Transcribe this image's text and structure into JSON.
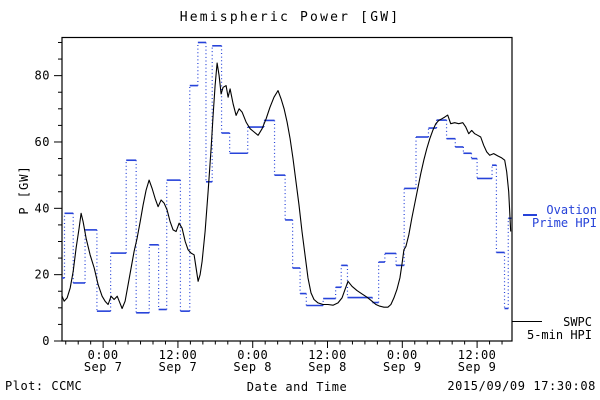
{
  "title": "Hemispheric Power [GW]",
  "footer": {
    "plot_credit": "Plot: CCMC",
    "timestamp": "2015/09/09 17:30:08"
  },
  "legend": {
    "ovation": {
      "line1": "Ovation",
      "line2": "Prime HPI",
      "color": "#2743d9"
    },
    "swpc": {
      "line1": "SWPC",
      "line2": "5-min HPI",
      "color": "#000000"
    }
  },
  "chart_data": {
    "type": "line",
    "title": "Hemispheric Power [GW]",
    "xlabel": "Date and Time",
    "ylabel": "P [GW]",
    "ylim": [
      0,
      91.5
    ],
    "xlim_hours_from_sep7_0000": [
      -6.6,
      65.6
    ],
    "grid": false,
    "legend_position": "right-outside",
    "y_ticks": [
      {
        "v": 0,
        "label": "0"
      },
      {
        "v": 20,
        "label": "20"
      },
      {
        "v": 40,
        "label": "40"
      },
      {
        "v": 60,
        "label": "60"
      },
      {
        "v": 80,
        "label": "80"
      }
    ],
    "y_minor_step": 5,
    "x_ticks": [
      {
        "t": 0,
        "line1": "0:00",
        "line2": "Sep 7"
      },
      {
        "t": 12,
        "line1": "12:00",
        "line2": "Sep 7"
      },
      {
        "t": 24,
        "line1": "0:00",
        "line2": "Sep 8"
      },
      {
        "t": 36,
        "line1": "12:00",
        "line2": "Sep 8"
      },
      {
        "t": 48,
        "line1": "0:00",
        "line2": "Sep 9"
      },
      {
        "t": 60,
        "line1": "12:00",
        "line2": "Sep 9"
      }
    ],
    "x_minor_step_hours": 2,
    "series": [
      {
        "name": "SWPC 5-min HPI",
        "color": "#000000",
        "style": "solid-line",
        "points_t_gw": [
          [
            -6.58,
            13.5
          ],
          [
            -6.26,
            12
          ],
          [
            -5.78,
            13
          ],
          [
            -5.29,
            16
          ],
          [
            -4.81,
            21
          ],
          [
            -4.33,
            28
          ],
          [
            -3.85,
            34
          ],
          [
            -3.53,
            38.5
          ],
          [
            -3.21,
            36
          ],
          [
            -2.73,
            31
          ],
          [
            -2.09,
            26
          ],
          [
            -1.44,
            22
          ],
          [
            -0.8,
            17
          ],
          [
            -0.16,
            13.5
          ],
          [
            0.32,
            12
          ],
          [
            0.8,
            11
          ],
          [
            1.28,
            13.5
          ],
          [
            1.76,
            12.5
          ],
          [
            2.25,
            13.5
          ],
          [
            2.57,
            12
          ],
          [
            3.05,
            9.8
          ],
          [
            3.53,
            12
          ],
          [
            4.01,
            17
          ],
          [
            4.49,
            22
          ],
          [
            4.97,
            27
          ],
          [
            5.45,
            31
          ],
          [
            5.94,
            36
          ],
          [
            6.42,
            41
          ],
          [
            6.9,
            45.5
          ],
          [
            7.38,
            48.5
          ],
          [
            7.86,
            46
          ],
          [
            8.34,
            43
          ],
          [
            8.82,
            40.5
          ],
          [
            9.3,
            42.5
          ],
          [
            9.79,
            41.5
          ],
          [
            10.27,
            39.5
          ],
          [
            10.75,
            36
          ],
          [
            11.23,
            33.5
          ],
          [
            11.71,
            33
          ],
          [
            12.19,
            35.5
          ],
          [
            12.67,
            34
          ],
          [
            13.16,
            30
          ],
          [
            13.64,
            27.5
          ],
          [
            14.12,
            26.5
          ],
          [
            14.6,
            26
          ],
          [
            14.92,
            22
          ],
          [
            15.24,
            18
          ],
          [
            15.56,
            20
          ],
          [
            15.88,
            24
          ],
          [
            16.36,
            33
          ],
          [
            16.84,
            45
          ],
          [
            17.33,
            58
          ],
          [
            17.65,
            68
          ],
          [
            17.97,
            77
          ],
          [
            18.29,
            83.8
          ],
          [
            18.61,
            80
          ],
          [
            18.93,
            74.5
          ],
          [
            19.25,
            76.5
          ],
          [
            19.73,
            77
          ],
          [
            20.05,
            73.5
          ],
          [
            20.37,
            76
          ],
          [
            20.85,
            71.5
          ],
          [
            21.33,
            68
          ],
          [
            21.81,
            70
          ],
          [
            22.3,
            69
          ],
          [
            22.94,
            66
          ],
          [
            23.58,
            64
          ],
          [
            24.22,
            63
          ],
          [
            24.86,
            62
          ],
          [
            25.5,
            64
          ],
          [
            26.14,
            67
          ],
          [
            26.78,
            70.5
          ],
          [
            27.42,
            73.5
          ],
          [
            28.06,
            75.5
          ],
          [
            28.55,
            73
          ],
          [
            29.03,
            70
          ],
          [
            29.51,
            66
          ],
          [
            29.99,
            61
          ],
          [
            30.47,
            55
          ],
          [
            30.95,
            48
          ],
          [
            31.43,
            41
          ],
          [
            31.91,
            33
          ],
          [
            32.39,
            26
          ],
          [
            32.87,
            19
          ],
          [
            33.35,
            14.5
          ],
          [
            33.84,
            12.5
          ],
          [
            34.48,
            11.5
          ],
          [
            35.28,
            11
          ],
          [
            36.08,
            11
          ],
          [
            36.88,
            10.8
          ],
          [
            37.68,
            11.5
          ],
          [
            38.32,
            13
          ],
          [
            38.8,
            15.5
          ],
          [
            39.29,
            18
          ],
          [
            39.93,
            16.5
          ],
          [
            40.73,
            15.2
          ],
          [
            41.53,
            14.2
          ],
          [
            42.33,
            13.2
          ],
          [
            43.13,
            12
          ],
          [
            43.77,
            11
          ],
          [
            44.41,
            10.5
          ],
          [
            45.05,
            10.2
          ],
          [
            45.69,
            10.2
          ],
          [
            46.17,
            11
          ],
          [
            46.65,
            13
          ],
          [
            47.13,
            15.5
          ],
          [
            47.61,
            19
          ],
          [
            47.93,
            23
          ],
          [
            48.25,
            27.5
          ],
          [
            48.57,
            28.5
          ],
          [
            49.05,
            32
          ],
          [
            49.53,
            37
          ],
          [
            50.01,
            41.5
          ],
          [
            50.49,
            46
          ],
          [
            50.97,
            50.5
          ],
          [
            51.45,
            54.5
          ],
          [
            51.93,
            58
          ],
          [
            52.41,
            61
          ],
          [
            52.89,
            63.5
          ],
          [
            53.37,
            65.5
          ],
          [
            53.85,
            66.5
          ],
          [
            54.33,
            67
          ],
          [
            54.81,
            67.5
          ],
          [
            55.29,
            68.1
          ],
          [
            55.77,
            65.5
          ],
          [
            56.41,
            65.8
          ],
          [
            57.05,
            65.5
          ],
          [
            57.7,
            65.8
          ],
          [
            58.18,
            64.5
          ],
          [
            58.66,
            62.5
          ],
          [
            59.14,
            63.5
          ],
          [
            59.62,
            62.5
          ],
          [
            60.1,
            62
          ],
          [
            60.58,
            61.5
          ],
          [
            61.06,
            59
          ],
          [
            61.54,
            57
          ],
          [
            62.02,
            56
          ],
          [
            62.66,
            56.5
          ],
          [
            63.3,
            55.8
          ],
          [
            63.95,
            55.2
          ],
          [
            64.43,
            54.5
          ],
          [
            64.75,
            51
          ],
          [
            65.07,
            45
          ],
          [
            65.23,
            39
          ],
          [
            65.39,
            33
          ]
        ]
      },
      {
        "name": "Ovation Prime HPI",
        "color": "#2743d9",
        "style": "steps-dotted-risers",
        "steps_t0_t1_gw": [
          [
            -6.6,
            -6.2,
            19
          ],
          [
            -6.2,
            -4.8,
            38.5
          ],
          [
            -4.8,
            -2.9,
            17.5
          ],
          [
            -2.9,
            -1.0,
            33.5
          ],
          [
            -1.0,
            1.2,
            9
          ],
          [
            1.2,
            3.7,
            26.5
          ],
          [
            3.7,
            5.3,
            54.5
          ],
          [
            5.3,
            7.4,
            8.5
          ],
          [
            7.4,
            8.9,
            29
          ],
          [
            8.9,
            10.2,
            9.5
          ],
          [
            10.2,
            12.4,
            48.5
          ],
          [
            12.4,
            13.9,
            9
          ],
          [
            13.9,
            15.2,
            77
          ],
          [
            15.2,
            16.5,
            90
          ],
          [
            16.5,
            17.5,
            48
          ],
          [
            17.5,
            19.0,
            89
          ],
          [
            19.0,
            20.3,
            62.7
          ],
          [
            20.3,
            23.2,
            56.6
          ],
          [
            23.2,
            25.8,
            64.5
          ],
          [
            25.8,
            27.5,
            66.5
          ],
          [
            27.5,
            29.2,
            50
          ],
          [
            29.2,
            30.4,
            36.5
          ],
          [
            30.4,
            31.6,
            22
          ],
          [
            31.6,
            32.6,
            14.3
          ],
          [
            32.6,
            35.3,
            10.7
          ],
          [
            35.3,
            37.3,
            12.8
          ],
          [
            37.3,
            38.2,
            16.2
          ],
          [
            38.2,
            39.2,
            22.8
          ],
          [
            39.2,
            43.2,
            13.1
          ],
          [
            43.2,
            44.2,
            11.6
          ],
          [
            44.2,
            45.2,
            23.8
          ],
          [
            45.2,
            47.0,
            26.4
          ],
          [
            47.0,
            48.3,
            22.8
          ],
          [
            48.3,
            50.2,
            46
          ],
          [
            50.2,
            52.2,
            61.5
          ],
          [
            52.2,
            53.5,
            64.2
          ],
          [
            53.5,
            55.1,
            66.6
          ],
          [
            55.1,
            56.5,
            61
          ],
          [
            56.5,
            57.8,
            58.5
          ],
          [
            57.8,
            59.1,
            56.6
          ],
          [
            59.1,
            60.0,
            55
          ],
          [
            60.0,
            62.4,
            49
          ],
          [
            62.4,
            63.1,
            53
          ],
          [
            63.1,
            64.4,
            26.7
          ],
          [
            64.4,
            65.0,
            9.8
          ],
          [
            65.0,
            65.5,
            37
          ]
        ]
      }
    ]
  }
}
